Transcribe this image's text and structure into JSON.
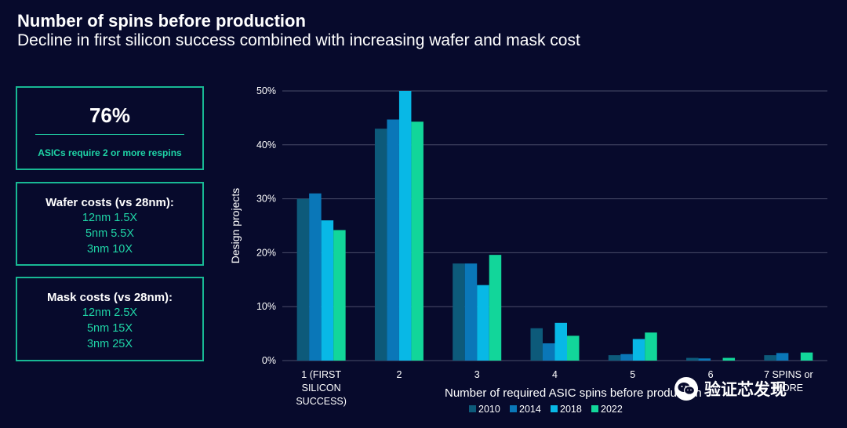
{
  "header": {
    "title": "Number of spins before production",
    "subtitle": "Decline in first silicon success combined with increasing wafer and mask cost"
  },
  "cards": {
    "stat": {
      "value": "76%",
      "caption": "ASICs require 2 or more respins"
    },
    "wafer": {
      "heading": "Wafer costs (vs 28nm):",
      "lines": [
        "12nm 1.5X",
        "5nm 5.5X",
        "3nm 10X"
      ]
    },
    "mask": {
      "heading": "Mask costs (vs 28nm):",
      "lines": [
        "12nm 2.5X",
        "5nm 15X",
        "3nm 25X"
      ]
    }
  },
  "watermark": {
    "text": "验证芯发现",
    "icon": "wechat-icon"
  },
  "chart_data": {
    "type": "bar",
    "categories": [
      "1 (FIRST SILICON SUCCESS)",
      "2",
      "3",
      "4",
      "5",
      "6",
      "7 SPINS or MORE"
    ],
    "category_lines": [
      [
        "1 (FIRST",
        "SILICON",
        "SUCCESS)"
      ],
      [
        "2"
      ],
      [
        "3"
      ],
      [
        "4"
      ],
      [
        "5"
      ],
      [
        "6"
      ],
      [
        "7 SPINS or",
        "MORE"
      ]
    ],
    "series": [
      {
        "name": "2010",
        "color": "#0d5a7a",
        "values": [
          30,
          43,
          18,
          6,
          1,
          0.5,
          1
        ]
      },
      {
        "name": "2014",
        "color": "#0a77b8",
        "values": [
          31,
          44.7,
          18,
          3.2,
          1.2,
          0.4,
          1.4
        ]
      },
      {
        "name": "2018",
        "color": "#08b8e6",
        "values": [
          26,
          50,
          14,
          7,
          4,
          0,
          0
        ]
      },
      {
        "name": "2022",
        "color": "#12d69a",
        "values": [
          24.2,
          44.3,
          19.6,
          4.6,
          5.2,
          0.5,
          1.5
        ]
      }
    ],
    "xlabel": "Number of required ASIC spins before production",
    "ylabel": "Design projects",
    "ylim": [
      0,
      50
    ],
    "yticks": [
      0,
      10,
      20,
      30,
      40,
      50
    ],
    "ytick_labels": [
      "0%",
      "10%",
      "20%",
      "30%",
      "40%",
      "50%"
    ],
    "grid": true,
    "legend": "bottom"
  }
}
